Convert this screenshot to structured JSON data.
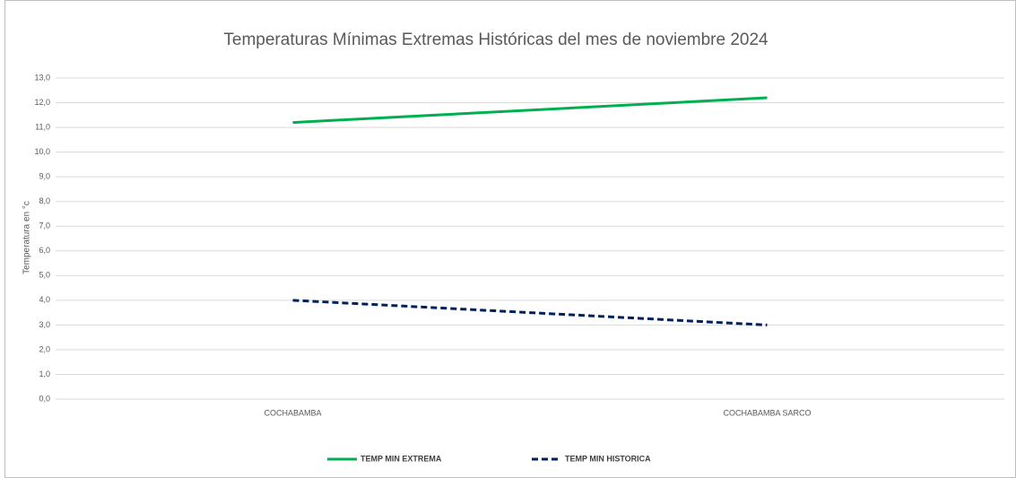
{
  "chart_data": {
    "type": "line",
    "title": "Temperaturas Mínimas Extremas Históricas del mes de noviembre 2024",
    "y_label": "Temperatura en °c",
    "categories": [
      "COCHABAMBA",
      "COCHABAMBA SARCO"
    ],
    "series": [
      {
        "name": "TEMP MIN EXTREMA",
        "color": "#00b050",
        "line_style": "solid",
        "values": [
          11.2,
          12.2
        ]
      },
      {
        "name": "TEMP MIN HISTORICA",
        "color": "#002060",
        "line_style": "dashed",
        "values": [
          4.0,
          3.0
        ]
      }
    ],
    "ylim": [
      0,
      13
    ],
    "yticks": [
      {
        "value": 0,
        "label": "0,0"
      },
      {
        "value": 1,
        "label": "1,0"
      },
      {
        "value": 2,
        "label": "2,0"
      },
      {
        "value": 3,
        "label": "3,0"
      },
      {
        "value": 4,
        "label": "4,0"
      },
      {
        "value": 5,
        "label": "5,0"
      },
      {
        "value": 6,
        "label": "6,0"
      },
      {
        "value": 7,
        "label": "7,0"
      },
      {
        "value": 8,
        "label": "8,0"
      },
      {
        "value": 9,
        "label": "9,0"
      },
      {
        "value": 10,
        "label": "10,0"
      },
      {
        "value": 11,
        "label": "11,0"
      },
      {
        "value": 12,
        "label": "12,0"
      },
      {
        "value": 13,
        "label": "13,0"
      }
    ],
    "grid": true,
    "legend": "bottom"
  }
}
